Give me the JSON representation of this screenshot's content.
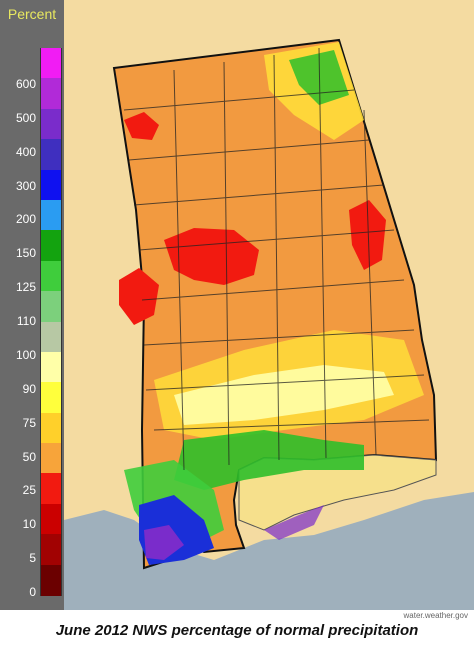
{
  "legend": {
    "title": "Percent",
    "ticks": [
      "600",
      "500",
      "400",
      "300",
      "200",
      "150",
      "125",
      "110",
      "100",
      "90",
      "75",
      "50",
      "25",
      "10",
      "5",
      "0"
    ],
    "colors": [
      "#f11cf4",
      "#b12ad8",
      "#7a2ccb",
      "#3f2fbf",
      "#0f11f0",
      "#2a9cf2",
      "#13a30f",
      "#3fcd3c",
      "#7cd07c",
      "#b7c8a4",
      "#ffffa8",
      "#ffff3c",
      "#ffd02a",
      "#f7a43a",
      "#f21a10",
      "#cb0000",
      "#a10202",
      "#6b0000"
    ]
  },
  "map": {
    "colors": {
      "ocean": "#9fb0bc",
      "land_light": "#f4dba1",
      "state_fill": "#f29a40",
      "red_core": "#f21a10",
      "yellow": "#ffdd3a",
      "cream": "#ffffa8",
      "green": "#2fbf2a",
      "blue": "#1a2fd8",
      "purple": "#7a2ccb",
      "county_line": "#222222"
    }
  },
  "credit": "water.weather.gov",
  "caption": "June 2012 NWS percentage of normal precipitation"
}
